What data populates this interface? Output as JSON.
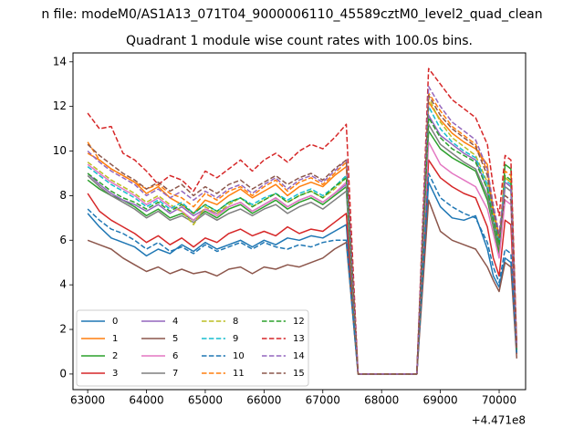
{
  "figure": {
    "suptitle": "n file: modeM0/AS1A13_071T04_9000006110_45589cztM0_level2_quad_clean"
  },
  "chart_data": {
    "type": "line",
    "title": "Quadrant 1 module wise count rates with 100.0s bins.",
    "xlabel": "",
    "ylabel": "",
    "x_offset_label": "+4.471e8",
    "xlim": [
      62750,
      70450
    ],
    "ylim": [
      -0.7,
      14.4
    ],
    "xticks": [
      63000,
      64000,
      65000,
      66000,
      67000,
      68000,
      69000,
      70000
    ],
    "yticks": [
      0,
      2,
      4,
      6,
      8,
      10,
      12,
      14
    ],
    "grid": false,
    "legend": {
      "placement": "lower-left",
      "columns": 4
    },
    "x": [
      63000,
      63200,
      63400,
      63600,
      63800,
      64000,
      64200,
      64400,
      64600,
      64800,
      65000,
      65200,
      65400,
      65600,
      65800,
      66000,
      66200,
      66400,
      66600,
      66800,
      67000,
      67200,
      67400,
      67600,
      67800,
      68000,
      68200,
      68400,
      68600,
      68800,
      69000,
      69200,
      69400,
      69600,
      69800,
      69900,
      70000,
      70100,
      70200,
      70300
    ],
    "series": [
      {
        "name": "0",
        "color": "#1f77b4",
        "style": "solid",
        "values": [
          7.2,
          6.6,
          6.1,
          5.9,
          5.7,
          5.3,
          5.6,
          5.4,
          5.8,
          5.5,
          5.9,
          5.6,
          5.8,
          6.0,
          5.7,
          6.0,
          5.8,
          6.1,
          6.0,
          6.2,
          6.1,
          6.4,
          6.7,
          0.0,
          0.0,
          0.0,
          0.0,
          0.0,
          0.0,
          8.6,
          7.5,
          7.0,
          6.9,
          7.1,
          5.6,
          4.4,
          3.9,
          5.2,
          5.0,
          1.0
        ]
      },
      {
        "name": "1",
        "color": "#ff7f0e",
        "style": "solid",
        "values": [
          9.9,
          9.6,
          9.2,
          8.9,
          8.6,
          8.1,
          8.4,
          7.9,
          7.6,
          7.2,
          7.8,
          7.6,
          8.0,
          8.3,
          7.9,
          8.2,
          8.5,
          8.0,
          8.4,
          8.6,
          8.4,
          8.9,
          9.3,
          0.0,
          0.0,
          0.0,
          0.0,
          0.0,
          0.0,
          12.2,
          11.4,
          10.8,
          10.4,
          10.1,
          9.4,
          6.8,
          5.6,
          8.8,
          8.6,
          1.2
        ]
      },
      {
        "name": "2",
        "color": "#2ca02c",
        "style": "solid",
        "values": [
          8.7,
          8.3,
          8.0,
          7.8,
          7.5,
          7.1,
          7.4,
          7.0,
          7.2,
          6.9,
          7.3,
          7.0,
          7.4,
          7.6,
          7.2,
          7.5,
          7.8,
          7.4,
          7.7,
          7.9,
          7.6,
          8.0,
          8.4,
          0.0,
          0.0,
          0.0,
          0.0,
          0.0,
          0.0,
          10.9,
          10.1,
          9.7,
          9.4,
          9.1,
          7.8,
          6.6,
          5.4,
          9.4,
          9.2,
          1.1
        ]
      },
      {
        "name": "3",
        "color": "#d62728",
        "style": "solid",
        "values": [
          8.1,
          7.3,
          6.9,
          6.6,
          6.3,
          5.9,
          6.2,
          5.8,
          6.1,
          5.7,
          6.1,
          5.9,
          6.3,
          6.5,
          6.2,
          6.4,
          6.2,
          6.6,
          6.3,
          6.5,
          6.4,
          6.8,
          7.2,
          0.0,
          0.0,
          0.0,
          0.0,
          0.0,
          0.0,
          9.6,
          8.8,
          8.4,
          8.1,
          7.9,
          6.6,
          5.2,
          4.4,
          6.9,
          6.7,
          0.9
        ]
      },
      {
        "name": "4",
        "color": "#9467bd",
        "style": "solid",
        "values": [
          9.0,
          8.5,
          8.1,
          7.8,
          7.6,
          7.3,
          7.6,
          7.2,
          7.5,
          7.1,
          7.4,
          7.2,
          7.5,
          7.7,
          7.3,
          7.6,
          7.9,
          7.5,
          7.8,
          8.0,
          7.7,
          8.1,
          8.5,
          0.0,
          0.0,
          0.0,
          0.0,
          0.0,
          0.0,
          11.6,
          10.7,
          10.3,
          9.9,
          9.6,
          8.3,
          6.8,
          5.9,
          8.6,
          8.4,
          1.0
        ]
      },
      {
        "name": "5",
        "color": "#8c564b",
        "style": "solid",
        "values": [
          6.0,
          5.8,
          5.6,
          5.2,
          4.9,
          4.6,
          4.8,
          4.5,
          4.7,
          4.5,
          4.6,
          4.4,
          4.7,
          4.8,
          4.5,
          4.8,
          4.7,
          4.9,
          4.8,
          5.0,
          5.2,
          5.6,
          5.9,
          0.0,
          0.0,
          0.0,
          0.0,
          0.0,
          0.0,
          7.8,
          6.4,
          6.0,
          5.8,
          5.6,
          4.8,
          4.2,
          3.7,
          5.0,
          4.8,
          0.7
        ]
      },
      {
        "name": "6",
        "color": "#e377c2",
        "style": "solid",
        "values": [
          9.4,
          9.0,
          8.6,
          8.3,
          8.0,
          7.6,
          7.9,
          7.5,
          7.3,
          6.9,
          7.4,
          7.1,
          7.5,
          7.7,
          7.3,
          7.6,
          7.9,
          7.5,
          7.8,
          8.0,
          7.7,
          8.1,
          8.6,
          0.0,
          0.0,
          0.0,
          0.0,
          0.0,
          0.0,
          10.4,
          9.4,
          9.0,
          8.7,
          8.4,
          7.4,
          6.3,
          5.2,
          7.8,
          7.6,
          1.0
        ]
      },
      {
        "name": "7",
        "color": "#7f7f7f",
        "style": "solid",
        "values": [
          8.9,
          8.4,
          8.0,
          7.7,
          7.4,
          7.0,
          7.3,
          6.9,
          7.1,
          6.8,
          7.2,
          6.9,
          7.2,
          7.4,
          7.1,
          7.4,
          7.6,
          7.2,
          7.5,
          7.7,
          7.4,
          7.8,
          8.2,
          0.0,
          0.0,
          0.0,
          0.0,
          0.0,
          0.0,
          11.2,
          10.3,
          9.9,
          9.5,
          9.2,
          8.0,
          6.7,
          5.7,
          8.4,
          8.2,
          1.0
        ]
      },
      {
        "name": "8",
        "color": "#bcbd22",
        "style": "dashed",
        "values": [
          9.5,
          9.1,
          8.7,
          8.4,
          8.1,
          7.7,
          8.0,
          7.6,
          7.3,
          6.7,
          7.5,
          7.2,
          7.6,
          7.9,
          7.5,
          7.8,
          8.1,
          7.7,
          8.0,
          8.2,
          7.9,
          8.3,
          8.8,
          0.0,
          0.0,
          0.0,
          0.0,
          0.0,
          0.0,
          12.4,
          11.3,
          10.6,
          10.2,
          9.8,
          8.6,
          7.2,
          6.0,
          8.8,
          8.6,
          1.1
        ]
      },
      {
        "name": "9",
        "color": "#17becf",
        "style": "dashed",
        "values": [
          9.3,
          8.9,
          8.5,
          8.2,
          7.9,
          7.5,
          7.8,
          7.4,
          7.7,
          7.2,
          7.6,
          7.3,
          7.7,
          7.9,
          7.6,
          7.9,
          8.1,
          7.8,
          8.1,
          8.3,
          8.0,
          8.4,
          8.9,
          0.0,
          0.0,
          0.0,
          0.0,
          0.0,
          0.0,
          12.0,
          11.0,
          10.4,
          10.0,
          9.7,
          8.5,
          7.0,
          5.9,
          8.7,
          8.5,
          1.1
        ]
      },
      {
        "name": "10",
        "color": "#1f77b4",
        "style": "dashed",
        "values": [
          7.4,
          6.9,
          6.5,
          6.3,
          6.0,
          5.6,
          5.9,
          5.5,
          5.7,
          5.4,
          5.8,
          5.5,
          5.7,
          5.9,
          5.6,
          5.9,
          5.7,
          5.6,
          5.8,
          5.7,
          5.9,
          6.0,
          6.0,
          0.0,
          0.0,
          0.0,
          0.0,
          0.0,
          0.0,
          9.0,
          7.9,
          7.5,
          7.2,
          7.0,
          5.9,
          4.8,
          4.1,
          5.6,
          5.4,
          0.9
        ]
      },
      {
        "name": "11",
        "color": "#ff7f0e",
        "style": "dashed",
        "values": [
          10.4,
          9.6,
          9.2,
          8.9,
          8.6,
          8.3,
          8.5,
          8.1,
          7.9,
          7.5,
          8.1,
          7.8,
          8.2,
          8.4,
          8.0,
          8.4,
          8.7,
          8.2,
          8.6,
          8.8,
          8.5,
          9.0,
          9.5,
          0.0,
          0.0,
          0.0,
          0.0,
          0.0,
          0.0,
          12.6,
          11.8,
          11.1,
          10.7,
          10.3,
          9.1,
          7.4,
          6.2,
          9.1,
          8.9,
          1.2
        ]
      },
      {
        "name": "12",
        "color": "#2ca02c",
        "style": "dashed",
        "values": [
          9.0,
          8.6,
          8.2,
          7.9,
          7.7,
          7.4,
          7.7,
          7.3,
          7.6,
          7.2,
          7.6,
          7.3,
          7.7,
          7.9,
          7.5,
          7.8,
          8.1,
          7.7,
          8.0,
          8.2,
          7.9,
          8.4,
          8.8,
          0.0,
          0.0,
          0.0,
          0.0,
          0.0,
          0.0,
          11.5,
          10.6,
          10.1,
          9.8,
          9.5,
          8.3,
          6.9,
          5.8,
          8.9,
          8.7,
          1.1
        ]
      },
      {
        "name": "13",
        "color": "#d62728",
        "style": "dashed",
        "values": [
          11.7,
          11.0,
          11.1,
          9.9,
          9.6,
          9.1,
          8.5,
          8.9,
          8.7,
          8.2,
          9.1,
          8.8,
          9.2,
          9.6,
          9.1,
          9.6,
          9.9,
          9.5,
          10.0,
          10.3,
          10.1,
          10.6,
          11.2,
          0.0,
          0.0,
          0.0,
          0.0,
          0.0,
          0.0,
          13.7,
          13.0,
          12.3,
          11.9,
          11.5,
          10.3,
          8.4,
          7.1,
          9.8,
          9.6,
          1.3
        ]
      },
      {
        "name": "14",
        "color": "#9467bd",
        "style": "dashed",
        "values": [
          10.0,
          9.5,
          9.1,
          8.8,
          8.5,
          8.0,
          8.3,
          7.9,
          8.2,
          7.8,
          8.2,
          7.9,
          8.3,
          8.5,
          8.1,
          8.5,
          8.8,
          8.3,
          8.7,
          8.9,
          8.6,
          9.1,
          9.6,
          0.0,
          0.0,
          0.0,
          0.0,
          0.0,
          0.0,
          12.9,
          12.0,
          11.3,
          10.9,
          10.5,
          9.2,
          7.6,
          6.3,
          8.6,
          8.4,
          1.2
        ]
      },
      {
        "name": "15",
        "color": "#8c564b",
        "style": "dashed",
        "values": [
          10.3,
          9.8,
          9.4,
          9.0,
          8.7,
          8.3,
          8.6,
          8.2,
          8.5,
          8.0,
          8.4,
          8.1,
          8.5,
          8.7,
          8.3,
          8.6,
          8.9,
          8.5,
          8.8,
          9.0,
          8.7,
          9.2,
          9.6,
          0.0,
          0.0,
          0.0,
          0.0,
          0.0,
          0.0,
          12.5,
          11.6,
          11.0,
          10.6,
          10.2,
          8.9,
          7.3,
          6.1,
          8.0,
          7.8,
          1.1
        ]
      }
    ]
  }
}
